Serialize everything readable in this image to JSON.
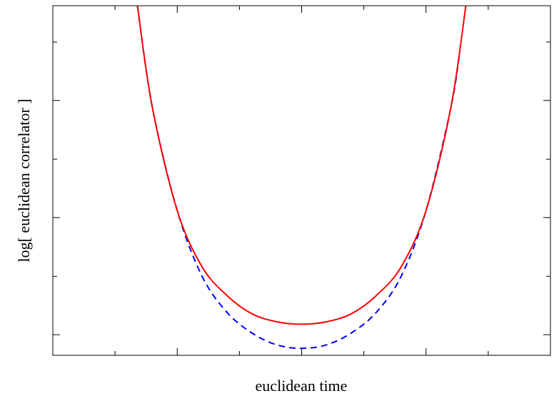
{
  "chart_data": {
    "type": "line",
    "title": "",
    "xlabel": "euclidean time",
    "ylabel": "log[ euclidean correlator ]",
    "x_tick_labels": [],
    "y_tick_labels": [],
    "grid": false,
    "legend": "none",
    "xlim": [
      0,
      1
    ],
    "ylim": [
      0,
      1
    ],
    "x_major_ticks": [
      0.25,
      0.5,
      0.75
    ],
    "x_minor_ticks": [
      0.125,
      0.375,
      0.625,
      0.875
    ],
    "y_major_ticks": [
      0.059,
      0.394,
      0.729
    ],
    "y_minor_ticks": [
      0.226,
      0.561,
      0.896
    ],
    "series": [
      {
        "color": "#ff0000",
        "style": "solid",
        "x": [
          0.17,
          0.2,
          0.25,
          0.3,
          0.35,
          0.4,
          0.45,
          0.5,
          0.55,
          0.6,
          0.65,
          0.7,
          0.75,
          0.8,
          0.83
        ],
        "y": [
          1.0,
          0.709,
          0.414,
          0.253,
          0.171,
          0.119,
          0.096,
          0.089,
          0.096,
          0.119,
          0.171,
          0.253,
          0.414,
          0.709,
          1.0
        ]
      },
      {
        "color": "#0000ff",
        "style": "dashed",
        "x": [
          0.17,
          0.2,
          0.25,
          0.3,
          0.35,
          0.4,
          0.45,
          0.5,
          0.55,
          0.6,
          0.65,
          0.7,
          0.75,
          0.8,
          0.818
        ],
        "y": [
          1.0,
          0.709,
          0.414,
          0.226,
          0.123,
          0.064,
          0.03,
          0.02,
          0.03,
          0.064,
          0.123,
          0.226,
          0.414,
          0.709,
          0.87
        ]
      }
    ]
  }
}
